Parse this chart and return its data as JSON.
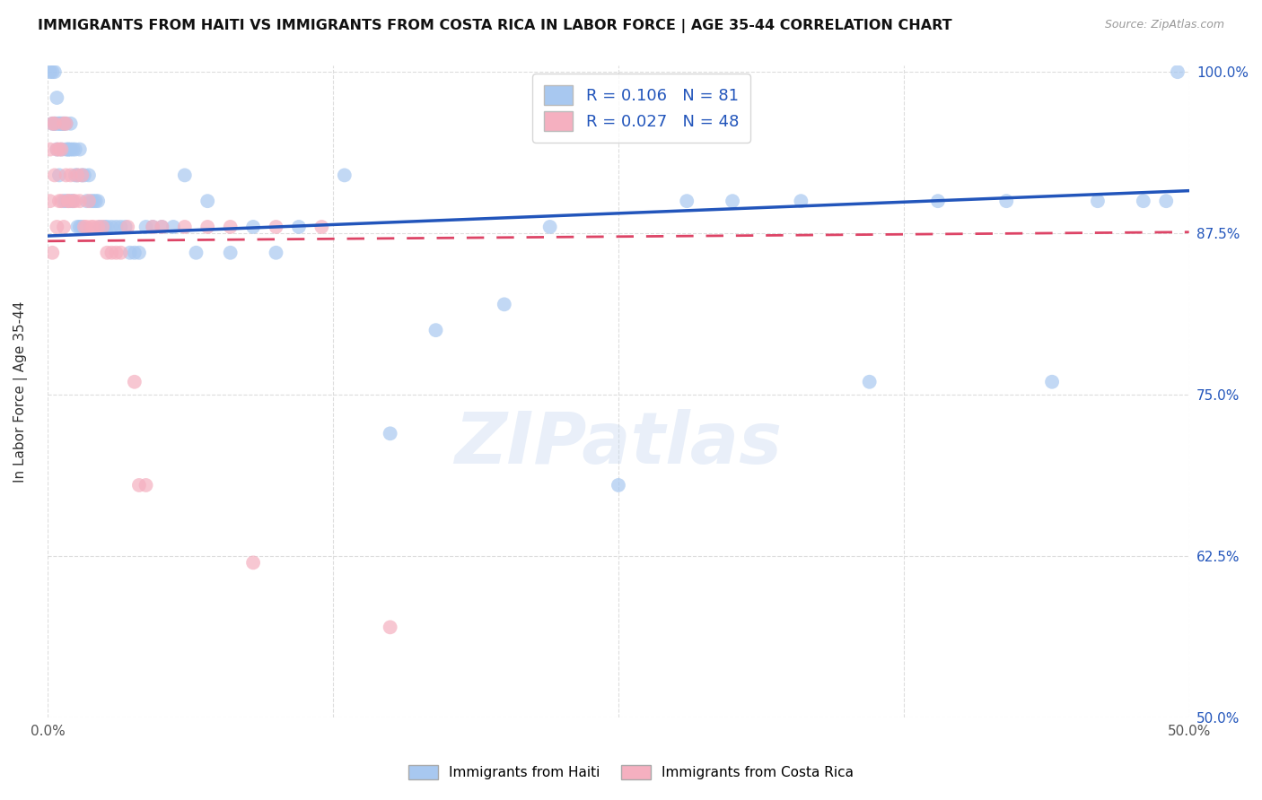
{
  "title": "IMMIGRANTS FROM HAITI VS IMMIGRANTS FROM COSTA RICA IN LABOR FORCE | AGE 35-44 CORRELATION CHART",
  "source": "Source: ZipAtlas.com",
  "ylabel": "In Labor Force | Age 35-44",
  "xlim": [
    0.0,
    0.5
  ],
  "ylim": [
    0.5,
    1.005
  ],
  "xticks": [
    0.0,
    0.125,
    0.25,
    0.375,
    0.5
  ],
  "xticklabels": [
    "0.0%",
    "",
    "",
    "",
    "50.0%"
  ],
  "yticks": [
    0.5,
    0.625,
    0.75,
    0.875,
    1.0
  ],
  "yticklabels": [
    "50.0%",
    "62.5%",
    "75.0%",
    "87.5%",
    "100.0%"
  ],
  "haiti_color": "#A8C8F0",
  "costarica_color": "#F5B0C0",
  "haiti_R": 0.106,
  "haiti_N": 81,
  "costarica_R": 0.027,
  "costarica_N": 48,
  "haiti_line_color": "#2255BB",
  "costarica_line_color": "#DD4466",
  "right_tick_color": "#2255BB",
  "watermark": "ZIPatlas",
  "haiti_x": [
    0.001,
    0.002,
    0.002,
    0.003,
    0.003,
    0.003,
    0.004,
    0.004,
    0.004,
    0.005,
    0.005,
    0.005,
    0.006,
    0.006,
    0.006,
    0.007,
    0.007,
    0.007,
    0.008,
    0.008,
    0.008,
    0.009,
    0.009,
    0.01,
    0.01,
    0.01,
    0.011,
    0.011,
    0.012,
    0.012,
    0.013,
    0.013,
    0.014,
    0.014,
    0.015,
    0.015,
    0.016,
    0.017,
    0.018,
    0.019,
    0.02,
    0.021,
    0.022,
    0.023,
    0.025,
    0.026,
    0.028,
    0.03,
    0.032,
    0.034,
    0.036,
    0.038,
    0.04,
    0.043,
    0.046,
    0.05,
    0.055,
    0.06,
    0.065,
    0.07,
    0.08,
    0.09,
    0.1,
    0.11,
    0.13,
    0.15,
    0.17,
    0.2,
    0.22,
    0.25,
    0.28,
    0.3,
    0.33,
    0.36,
    0.39,
    0.42,
    0.44,
    0.46,
    0.48,
    0.49,
    0.495
  ],
  "haiti_y": [
    1.0,
    1.0,
    0.96,
    1.0,
    0.96,
    0.96,
    0.96,
    0.98,
    0.94,
    0.96,
    0.96,
    0.92,
    0.96,
    0.96,
    0.94,
    0.96,
    0.96,
    0.9,
    0.96,
    0.94,
    0.9,
    0.94,
    0.94,
    0.96,
    0.94,
    0.9,
    0.94,
    0.9,
    0.94,
    0.92,
    0.92,
    0.88,
    0.94,
    0.88,
    0.92,
    0.88,
    0.92,
    0.9,
    0.92,
    0.9,
    0.9,
    0.9,
    0.9,
    0.88,
    0.88,
    0.88,
    0.88,
    0.88,
    0.88,
    0.88,
    0.86,
    0.86,
    0.86,
    0.88,
    0.88,
    0.88,
    0.88,
    0.92,
    0.86,
    0.9,
    0.86,
    0.88,
    0.86,
    0.88,
    0.92,
    0.72,
    0.8,
    0.82,
    0.88,
    0.68,
    0.9,
    0.9,
    0.9,
    0.76,
    0.9,
    0.9,
    0.76,
    0.9,
    0.9,
    0.9,
    1.0
  ],
  "cr_x": [
    0.001,
    0.001,
    0.002,
    0.002,
    0.003,
    0.003,
    0.004,
    0.004,
    0.005,
    0.005,
    0.006,
    0.006,
    0.007,
    0.007,
    0.008,
    0.008,
    0.009,
    0.009,
    0.01,
    0.011,
    0.012,
    0.013,
    0.014,
    0.015,
    0.016,
    0.017,
    0.018,
    0.019,
    0.02,
    0.022,
    0.024,
    0.026,
    0.028,
    0.03,
    0.032,
    0.035,
    0.038,
    0.04,
    0.043,
    0.046,
    0.05,
    0.06,
    0.07,
    0.08,
    0.09,
    0.1,
    0.12,
    0.15
  ],
  "cr_y": [
    0.94,
    0.9,
    0.96,
    0.86,
    0.96,
    0.92,
    0.94,
    0.88,
    0.94,
    0.9,
    0.94,
    0.9,
    0.96,
    0.88,
    0.96,
    0.92,
    0.9,
    0.9,
    0.92,
    0.9,
    0.9,
    0.92,
    0.9,
    0.92,
    0.88,
    0.88,
    0.9,
    0.88,
    0.88,
    0.88,
    0.88,
    0.86,
    0.86,
    0.86,
    0.86,
    0.88,
    0.76,
    0.68,
    0.68,
    0.88,
    0.88,
    0.88,
    0.88,
    0.88,
    0.62,
    0.88,
    0.88,
    0.57
  ]
}
